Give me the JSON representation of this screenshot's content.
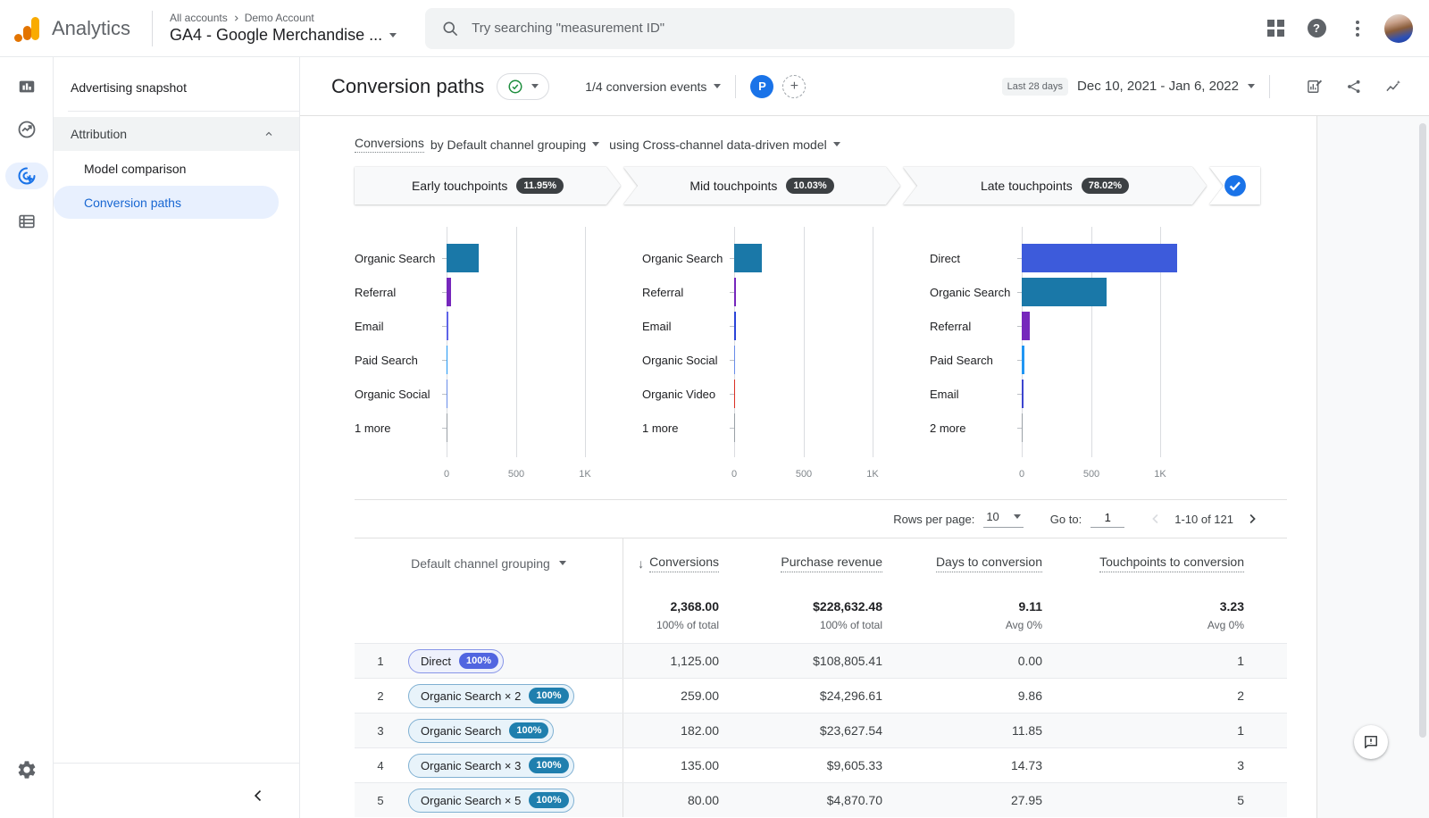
{
  "header": {
    "app_name": "Analytics",
    "breadcrumb_root": "All accounts",
    "breadcrumb_account": "Demo Account",
    "property_name": "GA4 - Google Merchandise ...",
    "search_placeholder": "Try searching \"measurement ID\"",
    "help_glyph": "?"
  },
  "sidebar": {
    "snapshot_label": "Advertising snapshot",
    "section_label": "Attribution",
    "items": [
      {
        "label": "Model comparison"
      },
      {
        "label": "Conversion paths"
      }
    ],
    "active_item": "Conversion paths"
  },
  "toolbar": {
    "title": "Conversion paths",
    "events_selector": "1/4 conversion events",
    "property_avatar_letter": "P",
    "plus_glyph": "+",
    "date_preset": "Last 28 days",
    "date_range": "Dec 10, 2021 - Jan 6, 2022"
  },
  "report": {
    "metric_label": "Conversions",
    "dimension_label": "by Default channel grouping",
    "model_label": "using Cross-channel data-driven model",
    "phases": [
      {
        "label": "Early touchpoints",
        "pct": "11.95%"
      },
      {
        "label": "Mid touchpoints",
        "pct": "10.03%"
      },
      {
        "label": "Late touchpoints",
        "pct": "78.02%"
      }
    ]
  },
  "chart_data": [
    {
      "type": "bar",
      "title": "Early touchpoints",
      "orientation": "horizontal",
      "categories": [
        "Organic Search",
        "Referral",
        "Email",
        "Paid Search",
        "Organic Social",
        "1 more"
      ],
      "values": [
        230,
        30,
        12,
        4,
        3,
        2
      ],
      "colors": [
        "#1a78a8",
        "#7627bc",
        "#5e63e8",
        "#2196f3",
        "#688ce8",
        "#9aa0a6"
      ],
      "xticks": [
        "0",
        "500",
        "1K"
      ],
      "xtick_values": [
        0,
        500,
        1000
      ],
      "xlim": [
        0,
        1400
      ],
      "grid": true
    },
    {
      "type": "bar",
      "title": "Mid touchpoints",
      "orientation": "horizontal",
      "categories": [
        "Organic Search",
        "Referral",
        "Email",
        "Organic Social",
        "Organic Video",
        "1 more"
      ],
      "values": [
        200,
        16,
        10,
        3,
        2,
        2
      ],
      "colors": [
        "#1a78a8",
        "#7627bc",
        "#2b44d8",
        "#688ce8",
        "#d93025",
        "#9aa0a6"
      ],
      "xticks": [
        "0",
        "500",
        "1K"
      ],
      "xtick_values": [
        0,
        500,
        1000
      ],
      "xlim": [
        0,
        1400
      ],
      "grid": true
    },
    {
      "type": "bar",
      "title": "Late touchpoints",
      "orientation": "horizontal",
      "categories": [
        "Direct",
        "Organic Search",
        "Referral",
        "Paid Search",
        "Email",
        "2 more"
      ],
      "values": [
        1125,
        610,
        55,
        22,
        12,
        8
      ],
      "colors": [
        "#3d5bdb",
        "#1a78a8",
        "#7627bc",
        "#2196f3",
        "#3d45cf",
        "#9aa0a6"
      ],
      "xticks": [
        "0",
        "500",
        "1K"
      ],
      "xtick_values": [
        0,
        500,
        1000
      ],
      "xlim": [
        0,
        1400
      ],
      "grid": true
    }
  ],
  "pagination": {
    "rows_per_page_label": "Rows per page:",
    "rows_per_page": "10",
    "goto_label": "Go to:",
    "goto_value": "1",
    "range_text": "1-10 of 121"
  },
  "table": {
    "sort_glyph": "↓",
    "dimension_header": "Default channel grouping",
    "metric_headers": [
      "Conversions",
      "Purchase revenue",
      "Days to conversion",
      "Touchpoints to conversion"
    ],
    "totals": {
      "conversions": "2,368.00",
      "conversions_sub": "100% of total",
      "revenue": "$228,632.48",
      "revenue_sub": "100% of total",
      "days": "9.11",
      "days_sub": "Avg 0%",
      "touchpoints": "3.23",
      "touchpoints_sub": "Avg 0%"
    },
    "rows": [
      {
        "index": "1",
        "path": "Direct",
        "badge": "100%",
        "chip_style": "direct",
        "badge_color": "#5165e0",
        "conversions": "1,125.00",
        "revenue": "$108,805.41",
        "days": "0.00",
        "touchpoints": "1"
      },
      {
        "index": "2",
        "path": "Organic Search × 2",
        "badge": "100%",
        "chip_style": "organic",
        "badge_color": "#1f7fae",
        "conversions": "259.00",
        "revenue": "$24,296.61",
        "days": "9.86",
        "touchpoints": "2"
      },
      {
        "index": "3",
        "path": "Organic Search",
        "badge": "100%",
        "chip_style": "organic",
        "badge_color": "#1f7fae",
        "conversions": "182.00",
        "revenue": "$23,627.54",
        "days": "11.85",
        "touchpoints": "1"
      },
      {
        "index": "4",
        "path": "Organic Search × 3",
        "badge": "100%",
        "chip_style": "organic",
        "badge_color": "#1f7fae",
        "conversions": "135.00",
        "revenue": "$9,605.33",
        "days": "14.73",
        "touchpoints": "3"
      },
      {
        "index": "5",
        "path": "Organic Search × 5",
        "badge": "100%",
        "chip_style": "organic",
        "badge_color": "#1f7fae",
        "conversions": "80.00",
        "revenue": "$4,870.70",
        "days": "27.95",
        "touchpoints": "5"
      }
    ]
  },
  "colors": {
    "accent_blue": "#1a73e8",
    "active_nav_bg": "#e8f0fe",
    "phase_pill_bg": "#3c4043",
    "organic_search_bar": "#1a78a8",
    "direct_bar": "#3d5bdb",
    "referral_bar": "#7627bc"
  }
}
